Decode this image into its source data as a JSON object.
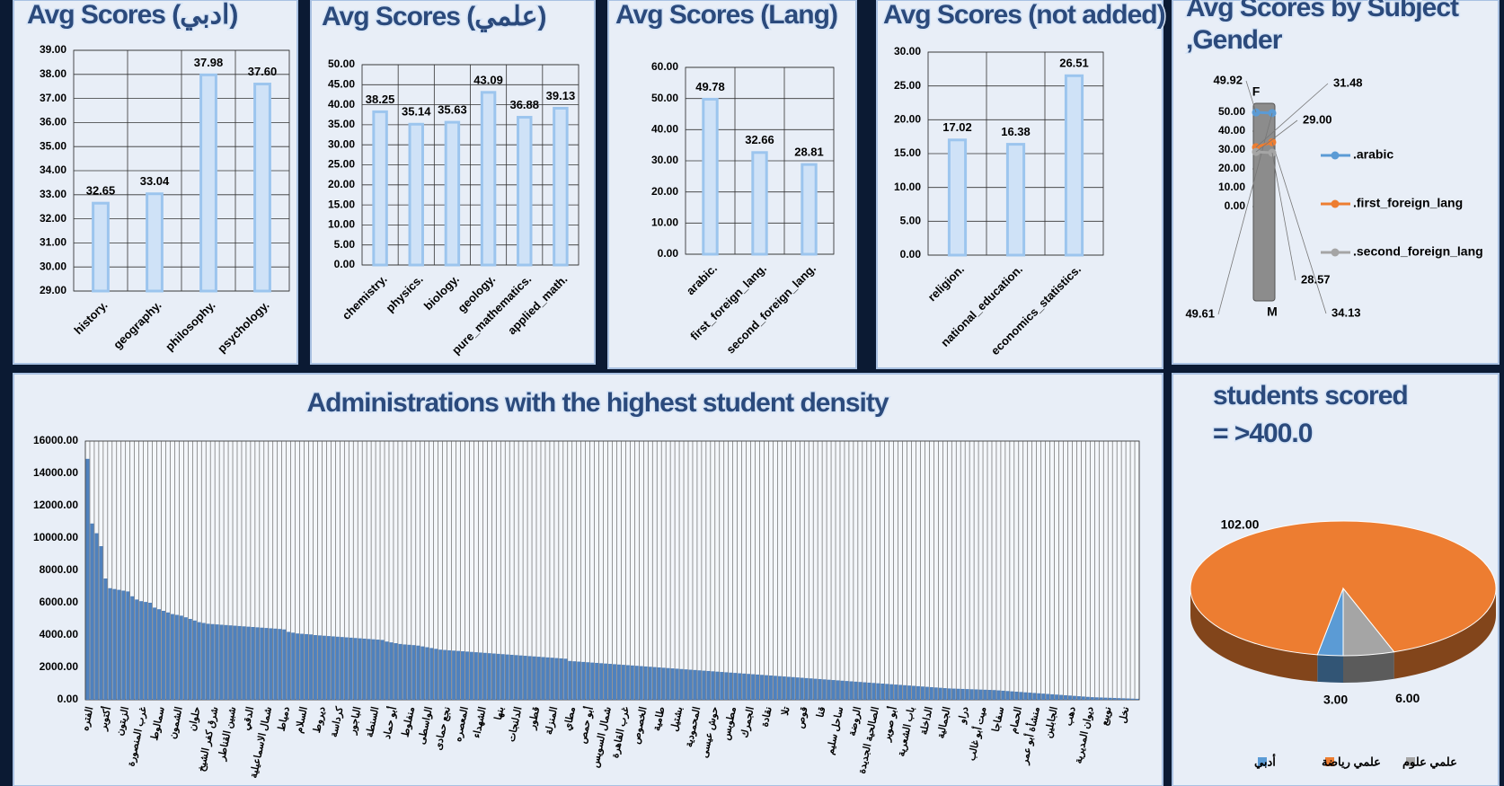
{
  "chart_data": [
    {
      "type": "bar",
      "title": "Avg Scores (ادبي)",
      "categories": [
        "history.",
        "geography.",
        "philosophy.",
        "psychology."
      ],
      "values": [
        32.65,
        33.04,
        37.98,
        37.6
      ],
      "value_labels": [
        "32.65",
        "33.04",
        "37.98",
        "37.60"
      ],
      "color": "#cfe2f7",
      "ylim": [
        29,
        39
      ],
      "yticks": [
        {
          "value": 29,
          "label": "29.00"
        },
        {
          "value": 30,
          "label": "30.00"
        },
        {
          "value": 31,
          "label": "31.00"
        },
        {
          "value": 32,
          "label": "32.00"
        },
        {
          "value": 33,
          "label": "33.00"
        },
        {
          "value": 34,
          "label": "34.00"
        },
        {
          "value": 35,
          "label": "35.00"
        },
        {
          "value": 36,
          "label": "36.00"
        },
        {
          "value": 37,
          "label": "37.00"
        },
        {
          "value": 38,
          "label": "38.00"
        },
        {
          "value": 39,
          "label": "39.00"
        }
      ],
      "grid": true
    },
    {
      "type": "bar",
      "title": "Avg Scores (علمي)",
      "categories": [
        "chemistry.",
        "physics.",
        "biology.",
        "geology.",
        "pure_mathematics.",
        "applied_math."
      ],
      "values": [
        38.25,
        35.14,
        35.63,
        43.09,
        36.88,
        39.13
      ],
      "value_labels": [
        "38.25",
        "35.14",
        "35.63",
        "43.09",
        "36.88",
        "39.13"
      ],
      "color": "#cfe2f7",
      "ylim": [
        0,
        50
      ],
      "yticks": [
        {
          "value": 0,
          "label": "0.00"
        },
        {
          "value": 5,
          "label": "5.00"
        },
        {
          "value": 10,
          "label": "10.00"
        },
        {
          "value": 15,
          "label": "15.00"
        },
        {
          "value": 20,
          "label": "20.00"
        },
        {
          "value": 25,
          "label": "25.00"
        },
        {
          "value": 30,
          "label": "30.00"
        },
        {
          "value": 35,
          "label": "35.00"
        },
        {
          "value": 40,
          "label": "40.00"
        },
        {
          "value": 45,
          "label": "45.00"
        },
        {
          "value": 50,
          "label": "50.00"
        }
      ],
      "grid": true
    },
    {
      "type": "bar",
      "title": "Avg Scores (Lang)",
      "categories": [
        "arabic.",
        "first_foreign_lang.",
        "second_foreign_lang."
      ],
      "values": [
        49.78,
        32.66,
        28.81
      ],
      "value_labels": [
        "49.78",
        "32.66",
        "28.81"
      ],
      "color": "#cfe2f7",
      "ylim": [
        0,
        60
      ],
      "yticks": [
        {
          "value": 0,
          "label": "0.00"
        },
        {
          "value": 10,
          "label": "10.00"
        },
        {
          "value": 20,
          "label": "20.00"
        },
        {
          "value": 30,
          "label": "30.00"
        },
        {
          "value": 40,
          "label": "40.00"
        },
        {
          "value": 50,
          "label": "50.00"
        },
        {
          "value": 60,
          "label": "60.00"
        }
      ],
      "grid": true
    },
    {
      "type": "bar",
      "title": "Avg Scores (not added)",
      "categories": [
        "religion.",
        "national_education.",
        "economics_statistics."
      ],
      "values": [
        17.02,
        16.38,
        26.51
      ],
      "value_labels": [
        "17.02",
        "16.38",
        "26.51"
      ],
      "color": "#cfe2f7",
      "ylim": [
        0,
        30
      ],
      "yticks": [
        {
          "value": 0,
          "label": "0.00"
        },
        {
          "value": 5,
          "label": "5.00"
        },
        {
          "value": 10,
          "label": "10.00"
        },
        {
          "value": 15,
          "label": "15.00"
        },
        {
          "value": 20,
          "label": "20.00"
        },
        {
          "value": 25,
          "label": "25.00"
        },
        {
          "value": 30,
          "label": "30.00"
        }
      ],
      "grid": true
    },
    {
      "type": "line",
      "title": [
        "Avg Scores by Subject",
        ",Gender"
      ],
      "categories": [
        "F",
        "M"
      ],
      "series": [
        {
          "name": ".arabic",
          "color": "#5b9bd5",
          "values": [
            49.92,
            49.61
          ],
          "value_labels": [
            "49.92",
            "49.61"
          ]
        },
        {
          "name": ".first_foreign_lang",
          "color": "#ed7d31",
          "values": [
            31.48,
            34.13
          ],
          "value_labels": [
            "31.48",
            "34.13"
          ]
        },
        {
          "name": ".second_foreign_lang",
          "color": "#a5a5a5",
          "values": [
            29.0,
            28.57
          ],
          "value_labels": [
            "29.00",
            "28.57"
          ]
        }
      ],
      "ylim": [
        0,
        50
      ],
      "yticks": [
        {
          "value": 0,
          "label": "0.00"
        },
        {
          "value": 10,
          "label": "10.00"
        },
        {
          "value": 20,
          "label": "20.00"
        },
        {
          "value": 30,
          "label": "30.00"
        },
        {
          "value": 40,
          "label": "40.00"
        },
        {
          "value": 50,
          "label": "50.00"
        }
      ]
    },
    {
      "type": "bar",
      "title": "Administrations with the highest student density",
      "color": "#4f81bd",
      "ylim": [
        0,
        16000
      ],
      "yticks": [
        {
          "value": 0,
          "label": "0.00"
        },
        {
          "value": 2000,
          "label": "2000.00"
        },
        {
          "value": 4000,
          "label": "4000.00"
        },
        {
          "value": 6000,
          "label": "6000.00"
        },
        {
          "value": 8000,
          "label": "8000.00"
        },
        {
          "value": 10000,
          "label": "10000.00"
        },
        {
          "value": 12000,
          "label": "12000.00"
        },
        {
          "value": 14000,
          "label": "14000.00"
        },
        {
          "value": 16000,
          "label": "16000.00"
        }
      ],
      "grid": true,
      "categories": [
        "الفتره",
        null,
        null,
        null,
        "أكتوبر",
        null,
        null,
        null,
        "الزيتون",
        null,
        null,
        null,
        "غرب المنصورة",
        null,
        null,
        null,
        "سمالوط",
        null,
        null,
        null,
        "الشمون",
        null,
        null,
        null,
        "حلوان",
        null,
        null,
        null,
        "شرق كفر الشيخ",
        null,
        null,
        null,
        "شبين القناطر",
        null,
        null,
        null,
        "الدقي",
        null,
        null,
        null,
        "شمال الاسماعيلية",
        null,
        null,
        null,
        "دمياط",
        null,
        null,
        null,
        "السلام",
        null,
        null,
        null,
        "ديروط",
        null,
        null,
        null,
        "كرداسة",
        null,
        null,
        null,
        "الباجور",
        null,
        null,
        null,
        "السنطة",
        null,
        null,
        null,
        "أبو حماد",
        null,
        null,
        null,
        "منفلوط",
        null,
        null,
        null,
        "الواسطى",
        null,
        null,
        null,
        "نجع حمادى",
        null,
        null,
        null,
        "المعصره",
        null,
        null,
        null,
        "الشهداء",
        null,
        null,
        null,
        "بنها",
        null,
        null,
        null,
        "الدلنجات",
        null,
        null,
        null,
        "قطور",
        null,
        null,
        null,
        "المنزلة",
        null,
        null,
        null,
        "مطاي",
        null,
        null,
        null,
        "أبو حمص",
        null,
        null,
        null,
        "شمال السويس",
        null,
        null,
        null,
        "غرب القاهرة",
        null,
        null,
        null,
        "الخصوص",
        null,
        null,
        null,
        "طامية",
        null,
        null,
        null,
        "بشتيل",
        null,
        null,
        null,
        "المحمودية",
        null,
        null,
        null,
        "حوش عيسى",
        null,
        null,
        null,
        "مطوبس",
        null,
        null,
        null,
        "الجمرك",
        null,
        null,
        null,
        "نقادة",
        null,
        null,
        null,
        "تلا",
        null,
        null,
        null,
        "قوص",
        null,
        null,
        null,
        "قنا",
        null,
        null,
        null,
        "ساحل سليم",
        null,
        null,
        null,
        "الروضة",
        null,
        null,
        null,
        "الصالحية الجديدة",
        null,
        null,
        null,
        "أبو صوير",
        null,
        null,
        null,
        "باب الشعرية",
        null,
        null,
        null,
        "الداخلة",
        null,
        null,
        null,
        "الجمالية",
        null,
        null,
        null,
        "دراو",
        null,
        null,
        null,
        "ميت أبو غالب",
        null,
        null,
        null,
        "سفاجا",
        null,
        null,
        null,
        "الحمام",
        null,
        null,
        null,
        "منشأة أبو عمر",
        null,
        null,
        null,
        "الجابلين",
        null,
        null,
        null,
        "دهب",
        null,
        null,
        null,
        "ديوان المديرية",
        null,
        null,
        null,
        "نويبع",
        null,
        null,
        null,
        "نخل",
        null,
        null,
        null
      ],
      "values": [
        14900,
        10900,
        10300,
        9500,
        7500,
        6900,
        6850,
        6800,
        6750,
        6700,
        6400,
        6200,
        6100,
        6050,
        6000,
        5700,
        5600,
        5500,
        5400,
        5300,
        5250,
        5200,
        5100,
        5000,
        4900,
        4800,
        4750,
        4700,
        4680,
        4660,
        4640,
        4620,
        4600,
        4580,
        4560,
        4540,
        4520,
        4500,
        4480,
        4460,
        4440,
        4420,
        4400,
        4380,
        4350,
        4200,
        4150,
        4100,
        4080,
        4060,
        4040,
        4000,
        3980,
        3960,
        3940,
        3920,
        3900,
        3880,
        3860,
        3840,
        3820,
        3800,
        3780,
        3760,
        3740,
        3720,
        3700,
        3600,
        3550,
        3500,
        3450,
        3420,
        3400,
        3380,
        3350,
        3300,
        3250,
        3200,
        3150,
        3100,
        3080,
        3060,
        3040,
        3020,
        3000,
        2980,
        2960,
        2940,
        2920,
        2900,
        2880,
        2860,
        2840,
        2820,
        2800,
        2780,
        2760,
        2740,
        2720,
        2700,
        2680,
        2660,
        2640,
        2620,
        2600,
        2580,
        2560,
        2540,
        2400,
        2380,
        2360,
        2340,
        2320,
        2300,
        2280,
        2260,
        2240,
        2220,
        2200,
        2180,
        2160,
        2140,
        2120,
        2100,
        2080,
        2060,
        2040,
        2020,
        2000,
        1980,
        1960,
        1940,
        1920,
        1900,
        1880,
        1860,
        1840,
        1820,
        1800,
        1780,
        1760,
        1740,
        1720,
        1700,
        1680,
        1660,
        1640,
        1620,
        1600,
        1580,
        1560,
        1540,
        1520,
        1500,
        1480,
        1460,
        1440,
        1420,
        1400,
        1380,
        1360,
        1340,
        1320,
        1300,
        1280,
        1260,
        1240,
        1220,
        1200,
        1180,
        1160,
        1140,
        1120,
        1100,
        1080,
        1060,
        1040,
        1020,
        1000,
        980,
        960,
        940,
        920,
        900,
        880,
        860,
        840,
        820,
        800,
        780,
        760,
        740,
        720,
        700,
        690,
        680,
        670,
        660,
        650,
        640,
        630,
        620,
        610,
        600,
        580,
        560,
        540,
        520,
        500,
        480,
        460,
        440,
        420,
        400,
        380,
        360,
        340,
        320,
        300,
        280,
        260,
        240,
        220,
        200,
        180,
        160,
        150,
        140,
        130,
        120,
        110,
        100,
        90,
        80,
        70,
        60
      ]
    },
    {
      "type": "pie",
      "title": [
        "students scored",
        "= >400.0"
      ],
      "categories": [
        "أدبي",
        "علمي رياضة",
        "علمي علوم"
      ],
      "values": [
        3,
        102,
        6
      ],
      "value_labels": [
        "3.00",
        "102.00",
        "6.00"
      ],
      "colors": [
        "#5b9bd5",
        "#ed7d31",
        "#a5a5a5"
      ]
    }
  ]
}
